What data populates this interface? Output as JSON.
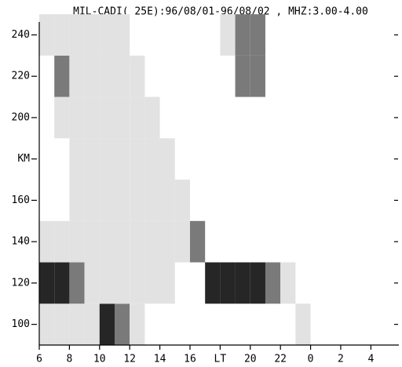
{
  "chart_data": {
    "type": "heatmap",
    "title": "MIL-CADI( 25E):96/08/01-96/08/02 , MHZ:3.00-4.00",
    "x": [
      6.5,
      6.5,
      6.5,
      6.5,
      7.5,
      7.5,
      7.5,
      7.5,
      7.5,
      7.5,
      8.5,
      8.5,
      8.5,
      8.5,
      8.5,
      8.5,
      8.5,
      8.5,
      9.5,
      9.5,
      9.5,
      9.5,
      9.5,
      9.5,
      9.5,
      9.5,
      10.5,
      10.5,
      10.5,
      10.5,
      10.5,
      10.5,
      10.5,
      10.5,
      11.5,
      11.5,
      11.5,
      11.5,
      11.5,
      11.5,
      11.5,
      11.5,
      12.5,
      12.5,
      12.5,
      12.5,
      12.5,
      12.5,
      12.5,
      13.5,
      13.5,
      13.5,
      13.5,
      13.5,
      14.5,
      14.5,
      14.5,
      14.5,
      15.5,
      15.5,
      16.5,
      17.5,
      18.5,
      18.5,
      19.5,
      19.5,
      19.5,
      20.5,
      20.5,
      20.5,
      21.5,
      22.5,
      23.5
    ],
    "y": [
      100,
      120,
      140,
      240,
      100,
      120,
      140,
      200,
      220,
      240,
      100,
      120,
      140,
      160,
      180,
      200,
      220,
      240,
      100,
      120,
      140,
      160,
      180,
      200,
      220,
      240,
      100,
      120,
      140,
      160,
      180,
      200,
      220,
      240,
      100,
      120,
      140,
      160,
      180,
      200,
      220,
      240,
      100,
      120,
      140,
      160,
      180,
      200,
      220,
      120,
      140,
      160,
      180,
      200,
      120,
      140,
      160,
      180,
      140,
      160,
      140,
      120,
      120,
      240,
      120,
      220,
      240,
      120,
      220,
      240,
      120,
      120,
      100
    ],
    "values": [
      1,
      3,
      1,
      1,
      1,
      3,
      1,
      1,
      2,
      1,
      1,
      2,
      1,
      1,
      1,
      1,
      1,
      1,
      1,
      1,
      1,
      1,
      1,
      1,
      1,
      1,
      3,
      1,
      1,
      1,
      1,
      1,
      1,
      1,
      2,
      1,
      1,
      1,
      1,
      1,
      1,
      1,
      1,
      1,
      1,
      1,
      1,
      1,
      1,
      1,
      1,
      1,
      1,
      1,
      1,
      1,
      1,
      1,
      1,
      1,
      2,
      3,
      3,
      1,
      3,
      2,
      2,
      3,
      2,
      2,
      2,
      1,
      1
    ],
    "levels": [
      {
        "value": 1,
        "color": "#e2e2e2"
      },
      {
        "value": 2,
        "color": "#7a7a7a"
      },
      {
        "value": 3,
        "color": "#262626"
      }
    ],
    "xlim": [
      6,
      29.7
    ],
    "ylim": [
      90,
      245.5
    ],
    "xticks": [
      6,
      8,
      10,
      12,
      14,
      16,
      {
        "value": 18,
        "label": "LT"
      },
      20,
      22,
      {
        "value": 24,
        "label": "0"
      },
      {
        "value": 26,
        "label": "2"
      },
      {
        "value": 28,
        "label": "4"
      }
    ],
    "yticks": [
      100,
      120,
      140,
      160,
      {
        "value": 180,
        "label": "KM"
      },
      200,
      220,
      240
    ]
  }
}
